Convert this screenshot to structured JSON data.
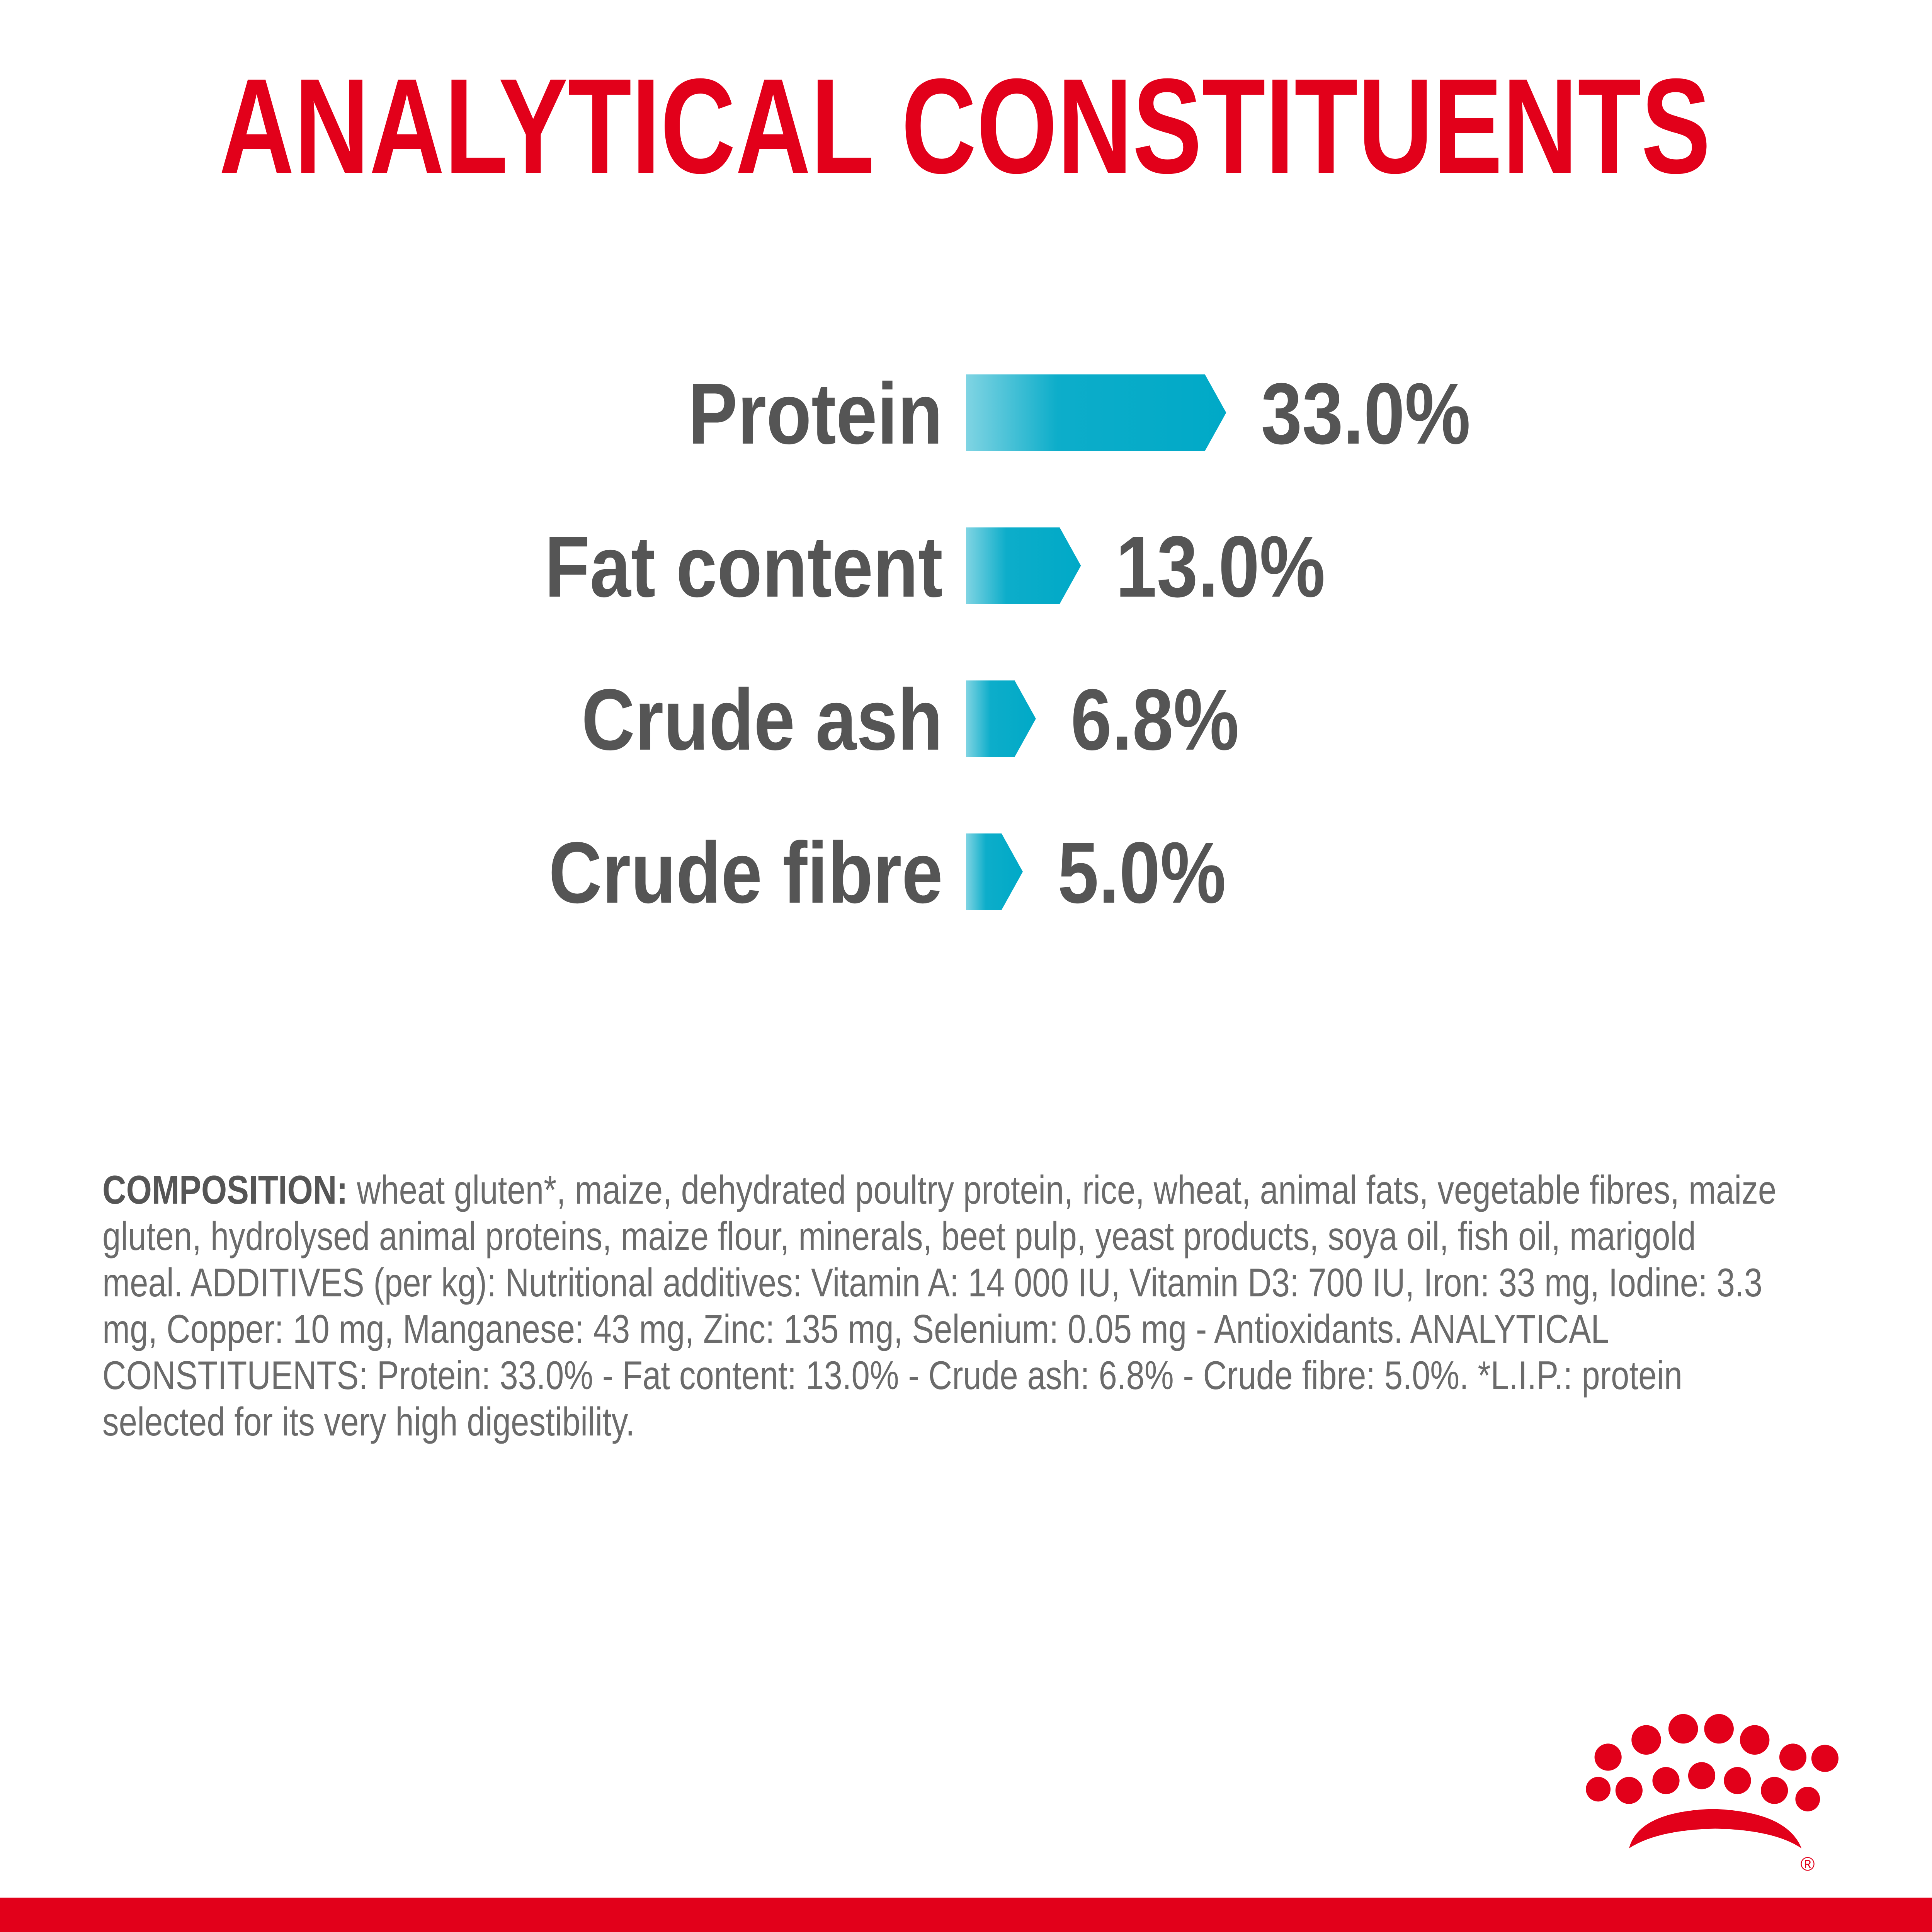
{
  "chart_data": {
    "type": "bar",
    "orientation": "horizontal",
    "title": "ANALYTICAL CONSTITUENTS",
    "categories": [
      "Protein",
      "Fat content",
      "Crude ash",
      "Crude fibre"
    ],
    "values": [
      33.0,
      13.0,
      6.8,
      5.0
    ],
    "value_labels": [
      "33.0%",
      "13.0%",
      "6.8%",
      "5.0%"
    ],
    "color": "#00a9c7"
  },
  "composition": {
    "label": "COMPOSITION:",
    "text": "wheat gluten*, maize, dehydrated poultry protein, rice, wheat, animal fats, vegetable fibres, maize gluten, hydrolysed animal proteins, maize flour, minerals, beet pulp, yeast products, soya oil, fish oil, marigold meal. ADDITIVES (per kg): Nutritional additives: Vitamin A: 14 000 IU, Vitamin D3: 700 IU, Iron: 33 mg, Iodine: 3.3 mg, Copper: 10 mg, Manganese: 43 mg, Zinc: 135 mg, Selenium: 0.05 mg - Antioxidants. ANALYTICAL CONSTITUENTS: Protein: 33.0% - Fat content: 13.0% - Crude ash: 6.8% - Crude fibre: 5.0%. *L.I.P.: protein selected for its very high digestibility."
  },
  "logo": {
    "mark": "®"
  }
}
